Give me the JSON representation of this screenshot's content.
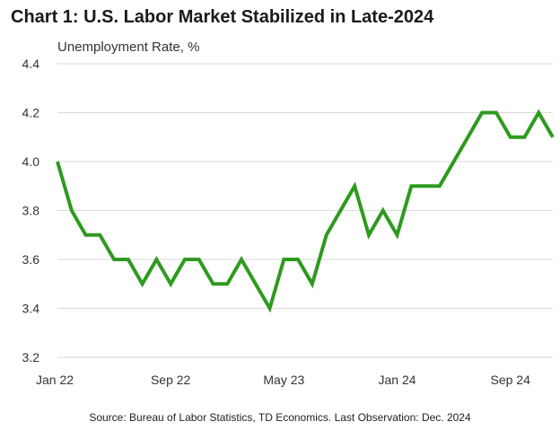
{
  "title": "Chart 1: U.S. Labor Market Stabilized in Late-2024",
  "source": "Source: Bureau of Labor Statistics, TD Economics. Last Observation: Dec. 2024",
  "chart_data": {
    "type": "line",
    "title": "Chart 1: U.S. Labor Market Stabilized in Late-2024",
    "ylabel": "Unemployment Rate, %",
    "xlabel": "",
    "ylim": [
      3.2,
      4.4
    ],
    "yticks": [
      "3.2",
      "3.4",
      "3.6",
      "3.8",
      "4.0",
      "4.2",
      "4.4"
    ],
    "xticks": [
      {
        "label": "Jan 22",
        "index": 0
      },
      {
        "label": "Sep 22",
        "index": 8
      },
      {
        "label": "May 23",
        "index": 16
      },
      {
        "label": "Jan 24",
        "index": 24
      },
      {
        "label": "Sep 24",
        "index": 32
      }
    ],
    "grid": true,
    "series_color": "#2e9a1f",
    "x": [
      "Jan 22",
      "Feb 22",
      "Mar 22",
      "Apr 22",
      "May 22",
      "Jun 22",
      "Jul 22",
      "Aug 22",
      "Sep 22",
      "Oct 22",
      "Nov 22",
      "Dec 22",
      "Jan 23",
      "Feb 23",
      "Mar 23",
      "Apr 23",
      "May 23",
      "Jun 23",
      "Jul 23",
      "Aug 23",
      "Sep 23",
      "Oct 23",
      "Nov 23",
      "Dec 23",
      "Jan 24",
      "Feb 24",
      "Mar 24",
      "Apr 24",
      "May 24",
      "Jun 24",
      "Jul 24",
      "Aug 24",
      "Sep 24",
      "Oct 24",
      "Nov 24",
      "Dec 24"
    ],
    "series": [
      {
        "values": [
          4.0,
          3.8,
          3.7,
          3.7,
          3.6,
          3.6,
          3.5,
          3.6,
          3.5,
          3.6,
          3.6,
          3.5,
          3.5,
          3.6,
          3.5,
          3.4,
          3.6,
          3.6,
          3.5,
          3.7,
          3.8,
          3.9,
          3.7,
          3.8,
          3.7,
          3.9,
          3.9,
          3.9,
          4.0,
          4.1,
          4.2,
          4.2,
          4.1,
          4.1,
          4.2,
          4.1
        ]
      }
    ]
  }
}
